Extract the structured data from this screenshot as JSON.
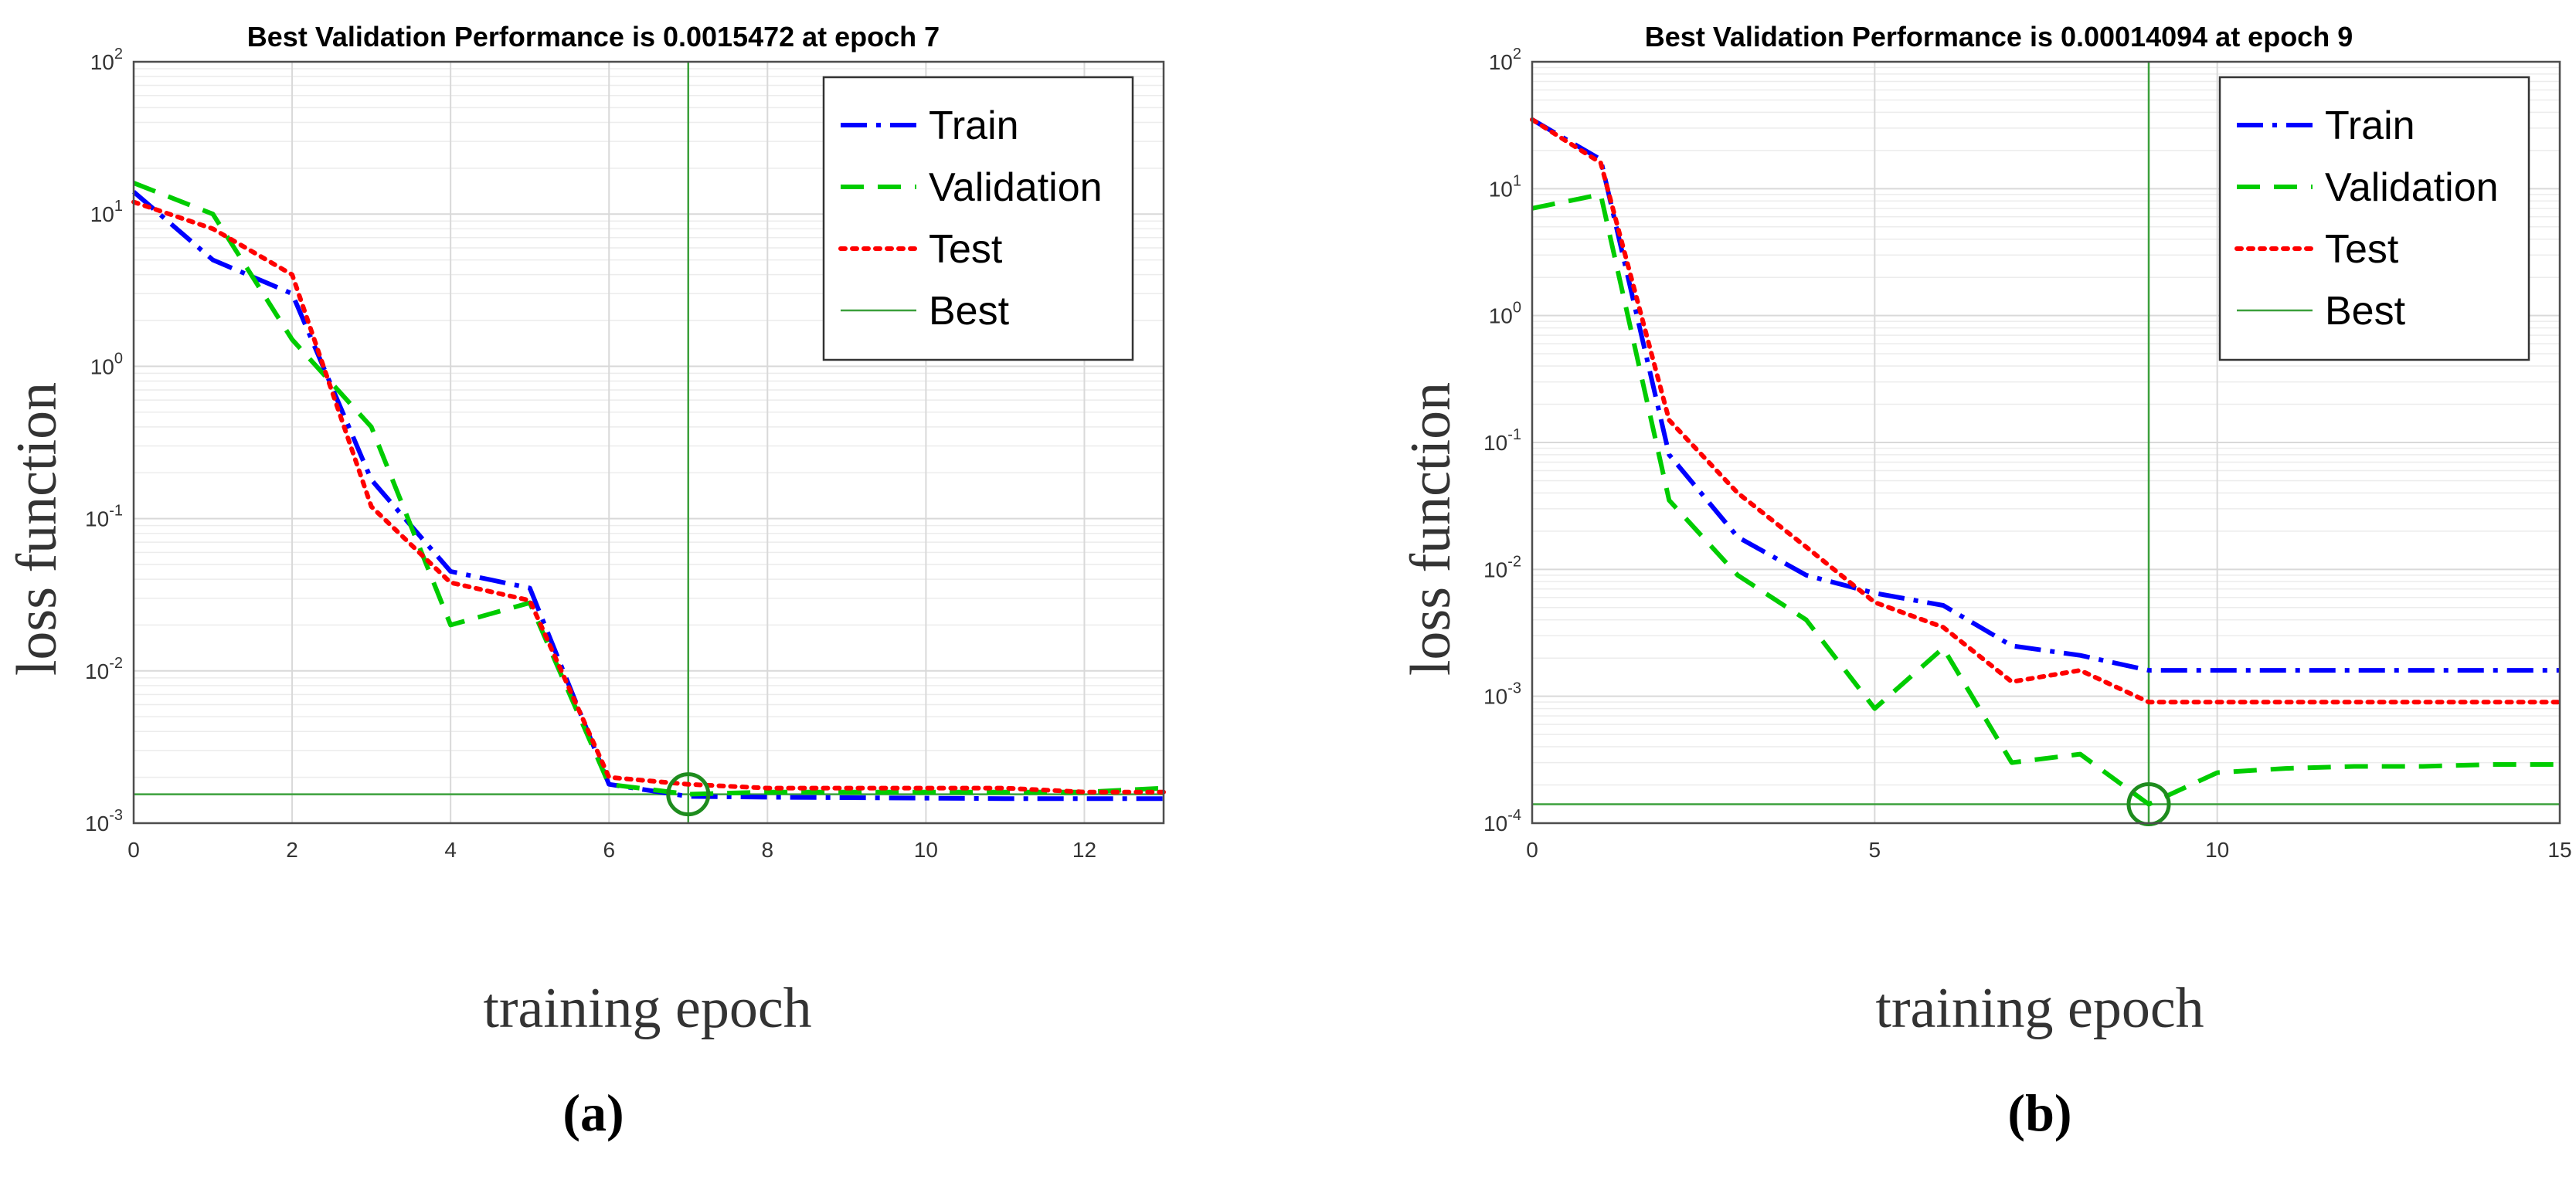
{
  "chart_data": [
    {
      "type": "line",
      "panel_label": "a",
      "title": "Best Validation Performance is 0.0015472 at epoch 7",
      "xlabel": "training epoch",
      "ylabel": "loss function",
      "xlim": [
        0,
        13
      ],
      "ylim": [
        0.001,
        100
      ],
      "yscale": "log",
      "xticks": [
        0,
        2,
        4,
        6,
        8,
        10,
        12
      ],
      "yticks": [
        0.001,
        0.01,
        0.1,
        1,
        10,
        100
      ],
      "grid": true,
      "legend_position": "top-right",
      "best": {
        "epoch": 7,
        "value": 0.0015472
      },
      "series": [
        {
          "name": "Train",
          "color": "#0000ff",
          "style": "dashdot",
          "x": [
            0,
            1,
            2,
            3,
            4,
            5,
            6,
            7,
            8,
            9,
            10,
            11,
            12,
            13
          ],
          "y": [
            14,
            5,
            3,
            0.18,
            0.045,
            0.035,
            0.0018,
            0.0015,
            0.00148,
            0.00147,
            0.00146,
            0.00145,
            0.00145,
            0.00145
          ]
        },
        {
          "name": "Validation",
          "color": "#00cc00",
          "style": "dashed",
          "x": [
            0,
            1,
            2,
            3,
            4,
            5,
            6,
            7,
            8,
            9,
            10,
            11,
            12,
            13
          ],
          "y": [
            16,
            10,
            1.5,
            0.4,
            0.02,
            0.028,
            0.0018,
            0.0015472,
            0.0016,
            0.0016,
            0.0016,
            0.0016,
            0.0016,
            0.0017
          ]
        },
        {
          "name": "Test",
          "color": "#ff0000",
          "style": "dotted",
          "x": [
            0,
            1,
            2,
            3,
            4,
            5,
            6,
            7,
            8,
            9,
            10,
            11,
            12,
            13
          ],
          "y": [
            12,
            8,
            4,
            0.12,
            0.038,
            0.029,
            0.002,
            0.0018,
            0.0017,
            0.0017,
            0.0017,
            0.0017,
            0.0016,
            0.0016
          ]
        }
      ]
    },
    {
      "type": "line",
      "panel_label": "b",
      "title": "Best Validation Performance is 0.00014094 at epoch 9",
      "xlabel": "training epoch",
      "ylabel": "loss function",
      "xlim": [
        0,
        15
      ],
      "ylim": [
        0.0001,
        100
      ],
      "yscale": "log",
      "xticks": [
        0,
        5,
        10,
        15
      ],
      "yticks": [
        0.0001,
        0.001,
        0.01,
        0.1,
        1,
        10,
        100
      ],
      "grid": true,
      "legend_position": "top-right",
      "best": {
        "epoch": 9,
        "value": 0.00014094
      },
      "series": [
        {
          "name": "Train",
          "color": "#0000ff",
          "style": "dashdot",
          "x": [
            0,
            1,
            2,
            3,
            4,
            5,
            6,
            7,
            8,
            9,
            10,
            11,
            12,
            13,
            14,
            15
          ],
          "y": [
            35,
            17,
            0.08,
            0.018,
            0.009,
            0.0065,
            0.0052,
            0.0025,
            0.0021,
            0.0016,
            0.0016,
            0.0016,
            0.0016,
            0.0016,
            0.0016,
            0.0016
          ]
        },
        {
          "name": "Validation",
          "color": "#00cc00",
          "style": "dashed",
          "x": [
            0,
            1,
            2,
            3,
            4,
            5,
            6,
            7,
            8,
            9,
            10,
            11,
            12,
            13,
            14,
            15
          ],
          "y": [
            7,
            9,
            0.035,
            0.009,
            0.004,
            0.0008,
            0.0024,
            0.0003,
            0.00035,
            0.00014094,
            0.00025,
            0.00027,
            0.00028,
            0.00028,
            0.00029,
            0.00029
          ]
        },
        {
          "name": "Test",
          "color": "#ff0000",
          "style": "dotted",
          "x": [
            0,
            1,
            2,
            3,
            4,
            5,
            6,
            7,
            8,
            9,
            10,
            11,
            12,
            13,
            14,
            15
          ],
          "y": [
            35,
            16,
            0.15,
            0.04,
            0.015,
            0.0055,
            0.0035,
            0.0013,
            0.0016,
            0.0009,
            0.0009,
            0.0009,
            0.0009,
            0.0009,
            0.0009,
            0.0009
          ]
        }
      ]
    }
  ],
  "legend_items": [
    "Train",
    "Validation",
    "Test",
    "Best"
  ],
  "captions": {
    "left_open": "(",
    "a": "a",
    "b": "b",
    "right_close": ")"
  }
}
